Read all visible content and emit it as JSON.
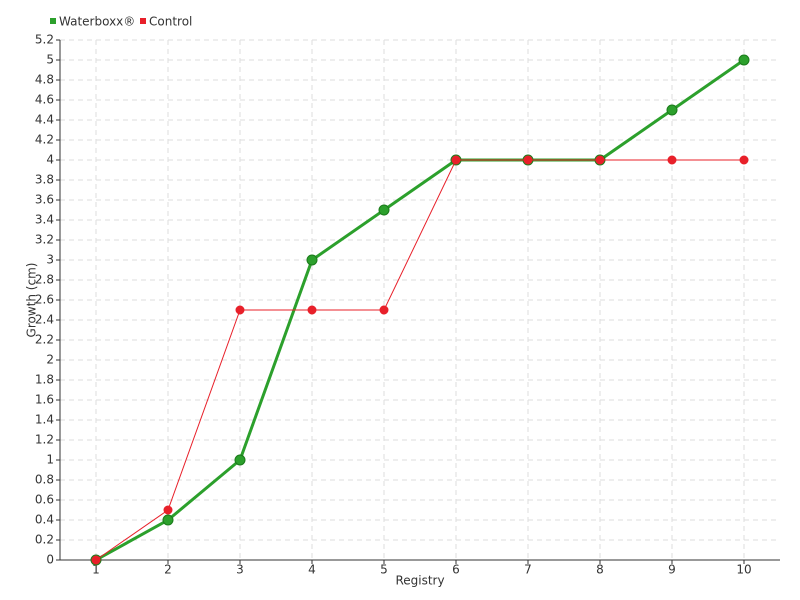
{
  "chart_data": {
    "type": "line",
    "x_label": "Registry",
    "y_label": "Growth (cm)",
    "categories": [
      "1",
      "2",
      "3",
      "4",
      "5",
      "6",
      "7",
      "8",
      "9",
      "10"
    ],
    "series": [
      {
        "name": "Waterboxx®",
        "color": "#2ca02c",
        "values": [
          0,
          0.4,
          1,
          3,
          3.5,
          4,
          4,
          4,
          4.5,
          5
        ]
      },
      {
        "name": "Control",
        "color": "#e8202a",
        "values": [
          0,
          0.5,
          2.5,
          2.5,
          2.5,
          4,
          4,
          4,
          4,
          4
        ]
      }
    ],
    "ylim": [
      0,
      5.2
    ],
    "yticks": [
      0,
      0.2,
      0.4,
      0.6,
      0.8,
      1,
      1.2,
      1.4,
      1.6,
      1.8,
      2,
      2.2,
      2.4,
      2.6,
      2.8,
      3,
      3.2,
      3.4,
      3.6,
      3.8,
      4,
      4.2,
      4.4,
      4.6,
      4.8,
      5,
      5.2
    ],
    "grid": true,
    "legend": "top-left"
  }
}
